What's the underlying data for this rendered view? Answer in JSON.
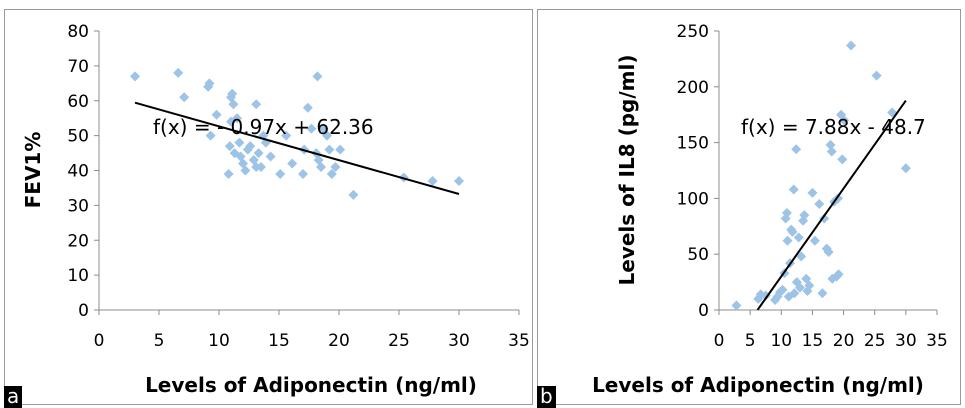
{
  "chart_data": [
    {
      "type": "scatter",
      "panel_label": "a",
      "xlabel": "Levels of Adiponectin (ng/ml)",
      "ylabel": "FEV1%",
      "xlim": [
        0,
        35
      ],
      "ylim": [
        0,
        80
      ],
      "xticks": [
        0,
        5,
        10,
        15,
        20,
        25,
        30,
        35
      ],
      "yticks": [
        0,
        10,
        20,
        30,
        40,
        50,
        60,
        70,
        80
      ],
      "grid": false,
      "marker_color": "#9dc3e6",
      "trendline": {
        "equation": "f(x) = - 0.97x + 62.36",
        "slope": -0.97,
        "intercept": 62.36,
        "x_range": [
          3,
          30
        ]
      },
      "points": [
        [
          3,
          67
        ],
        [
          6.6,
          68
        ],
        [
          7.1,
          61
        ],
        [
          9.1,
          64
        ],
        [
          9.2,
          65
        ],
        [
          9.3,
          50
        ],
        [
          9.8,
          56
        ],
        [
          10.8,
          39
        ],
        [
          10.9,
          47
        ],
        [
          11,
          54
        ],
        [
          11,
          61
        ],
        [
          11.1,
          62
        ],
        [
          11.2,
          59
        ],
        [
          11.3,
          45
        ],
        [
          11.5,
          55
        ],
        [
          11.7,
          48
        ],
        [
          11.8,
          44
        ],
        [
          12,
          42
        ],
        [
          12.2,
          40
        ],
        [
          12.4,
          46
        ],
        [
          12.6,
          47
        ],
        [
          12.9,
          43
        ],
        [
          13.1,
          41
        ],
        [
          13.1,
          59
        ],
        [
          13.3,
          45
        ],
        [
          13.5,
          41
        ],
        [
          13.7,
          50
        ],
        [
          13.9,
          48
        ],
        [
          14.3,
          44
        ],
        [
          15.1,
          39
        ],
        [
          15.6,
          50
        ],
        [
          16.1,
          42
        ],
        [
          17,
          39
        ],
        [
          17.1,
          46
        ],
        [
          17.4,
          58
        ],
        [
          17.7,
          52
        ],
        [
          18.1,
          45
        ],
        [
          18.2,
          67
        ],
        [
          18.3,
          43
        ],
        [
          18.5,
          41
        ],
        [
          18.7,
          52
        ],
        [
          19,
          50
        ],
        [
          19.2,
          46
        ],
        [
          19.4,
          39
        ],
        [
          19.7,
          41
        ],
        [
          20.1,
          46
        ],
        [
          21.2,
          33
        ],
        [
          25.4,
          38
        ],
        [
          27.8,
          37
        ],
        [
          30,
          37
        ]
      ]
    },
    {
      "type": "scatter",
      "panel_label": "b",
      "xlabel": "Levels of Adiponectin (ng/ml)",
      "ylabel": "Levels of IL8 (pg/ml)",
      "xlim": [
        0,
        35
      ],
      "ylim": [
        0,
        250
      ],
      "xticks": [
        0,
        5,
        10,
        15,
        20,
        25,
        30,
        35
      ],
      "yticks": [
        0,
        50,
        100,
        150,
        200,
        250
      ],
      "grid": false,
      "marker_color": "#9dc3e6",
      "trendline": {
        "equation": "f(x) = 7.88x - 48.7",
        "slope": 7.88,
        "intercept": -48.7,
        "x_range": [
          6.2,
          30
        ]
      },
      "points": [
        [
          2.8,
          4
        ],
        [
          6.3,
          10
        ],
        [
          6.7,
          14
        ],
        [
          7.5,
          13
        ],
        [
          9,
          9
        ],
        [
          9.4,
          12
        ],
        [
          9.8,
          16
        ],
        [
          10.2,
          18
        ],
        [
          10.5,
          33
        ],
        [
          10.7,
          82
        ],
        [
          10.9,
          87
        ],
        [
          11,
          62
        ],
        [
          11.2,
          12
        ],
        [
          11.4,
          42
        ],
        [
          11.6,
          72
        ],
        [
          11.8,
          70
        ],
        [
          12,
          108
        ],
        [
          12.1,
          15
        ],
        [
          12.4,
          144
        ],
        [
          12.5,
          25
        ],
        [
          12.8,
          65
        ],
        [
          13,
          20
        ],
        [
          13.2,
          48
        ],
        [
          13.5,
          80
        ],
        [
          13.7,
          85
        ],
        [
          14,
          28
        ],
        [
          14.2,
          17
        ],
        [
          14.5,
          22
        ],
        [
          15,
          105
        ],
        [
          15.4,
          62
        ],
        [
          16.1,
          95
        ],
        [
          16.6,
          15
        ],
        [
          16.9,
          82
        ],
        [
          17.3,
          55
        ],
        [
          17.6,
          52
        ],
        [
          17.9,
          148
        ],
        [
          18.1,
          142
        ],
        [
          18.2,
          28
        ],
        [
          18.5,
          97
        ],
        [
          18.9,
          30
        ],
        [
          19.1,
          100
        ],
        [
          19.2,
          32
        ],
        [
          19.6,
          175
        ],
        [
          19.8,
          135
        ],
        [
          20.1,
          170
        ],
        [
          21.2,
          237
        ],
        [
          25.3,
          210
        ],
        [
          27.8,
          177
        ],
        [
          30,
          127
        ]
      ]
    }
  ]
}
